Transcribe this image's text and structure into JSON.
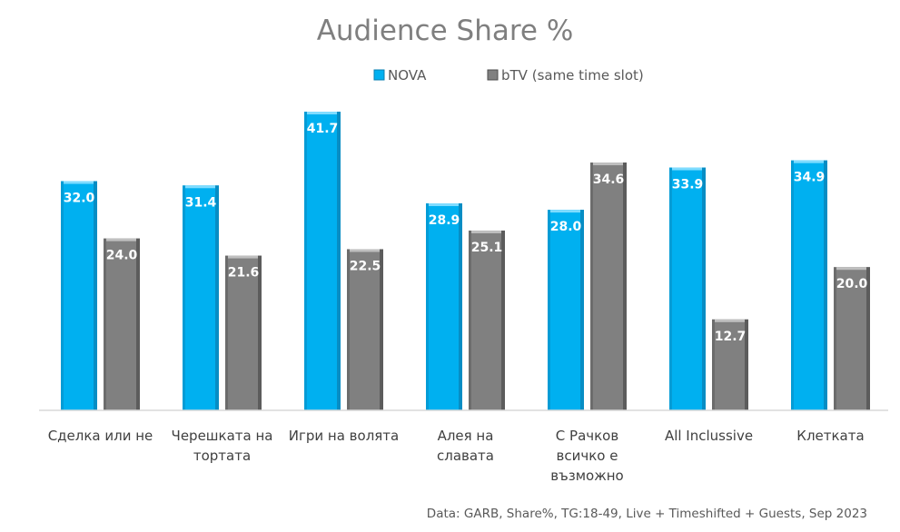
{
  "chart_data": {
    "type": "bar",
    "title": "Audience Share %",
    "categories": [
      [
        "Сделка или не"
      ],
      [
        "Черешката на",
        "тортата"
      ],
      [
        "Игри на волята"
      ],
      [
        "Алея на",
        "славата"
      ],
      [
        "С Рачков",
        "всичко е",
        "възможно"
      ],
      [
        "All Inclussive"
      ],
      [
        "Клетката"
      ]
    ],
    "series": [
      {
        "name": "NOVA",
        "color": "#00b0f0",
        "values": [
          32.0,
          31.4,
          41.7,
          28.9,
          28.0,
          33.9,
          34.9
        ]
      },
      {
        "name": "bTV (same time slot)",
        "color": "#808080",
        "values": [
          24.0,
          21.6,
          22.5,
          25.1,
          34.6,
          12.7,
          20.0
        ]
      }
    ],
    "ylim": [
      0,
      41.7
    ],
    "grid": false,
    "legend_position": "top-center",
    "xlabel": "",
    "ylabel": "",
    "annotation": "Data: GARB, Share%, TG:18-49, Live + Timeshifted + Guests, Sep 2023"
  }
}
